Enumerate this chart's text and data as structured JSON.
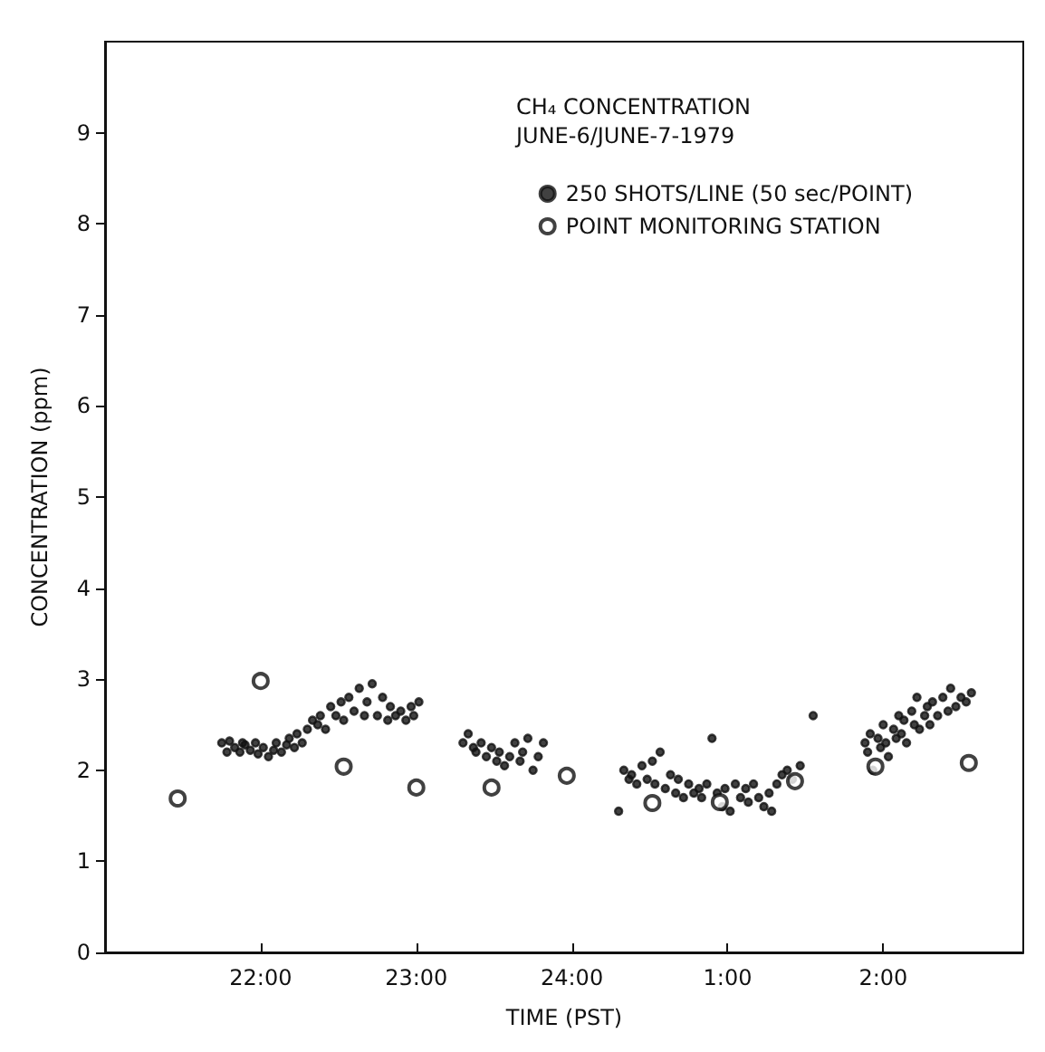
{
  "chart_data": {
    "type": "scatter",
    "title": "CH₄ CONCENTRATION",
    "subtitle": "JUNE-6/JUNE-7-1979",
    "xlabel": "TIME (PST)",
    "ylabel": "CONCENTRATION (ppm)",
    "xlim": [
      "1979-06-06T21:00",
      "1979-06-07T02:54"
    ],
    "xticks": [
      {
        "value": "1979-06-06T22:00",
        "label": "22:00"
      },
      {
        "value": "1979-06-06T23:00",
        "label": "23:00"
      },
      {
        "value": "1979-06-07T00:00",
        "label": "24:00"
      },
      {
        "value": "1979-06-07T01:00",
        "label": "1:00"
      },
      {
        "value": "1979-06-07T02:00",
        "label": "2:00"
      }
    ],
    "ylim": [
      0,
      10
    ],
    "yticks": [
      0,
      1,
      2,
      3,
      4,
      5,
      6,
      7,
      8,
      9
    ],
    "grid": false,
    "legend": "top right",
    "marker": "circle",
    "series": [
      {
        "name": "250 SHOTS/LINE (50 sec/POINT)",
        "color": "#111111",
        "x": [
          "1979-06-06T21:45",
          "1979-06-06T21:47",
          "1979-06-06T21:48",
          "1979-06-06T21:50",
          "1979-06-06T21:52",
          "1979-06-06T21:53",
          "1979-06-06T21:54",
          "1979-06-06T21:56",
          "1979-06-06T21:58",
          "1979-06-06T21:59",
          "1979-06-06T22:01",
          "1979-06-06T22:03",
          "1979-06-06T22:05",
          "1979-06-06T22:06",
          "1979-06-06T22:08",
          "1979-06-06T22:10",
          "1979-06-06T22:11",
          "1979-06-06T22:13",
          "1979-06-06T22:14",
          "1979-06-06T22:16",
          "1979-06-06T22:18",
          "1979-06-06T22:20",
          "1979-06-06T22:22",
          "1979-06-06T22:23",
          "1979-06-06T22:25",
          "1979-06-06T22:27",
          "1979-06-06T22:29",
          "1979-06-06T22:31",
          "1979-06-06T22:32",
          "1979-06-06T22:34",
          "1979-06-06T22:36",
          "1979-06-06T22:38",
          "1979-06-06T22:40",
          "1979-06-06T22:41",
          "1979-06-06T22:43",
          "1979-06-06T22:45",
          "1979-06-06T22:47",
          "1979-06-06T22:49",
          "1979-06-06T22:50",
          "1979-06-06T22:52",
          "1979-06-06T22:54",
          "1979-06-06T22:56",
          "1979-06-06T22:58",
          "1979-06-06T22:59",
          "1979-06-06T23:01",
          "1979-06-06T23:18",
          "1979-06-06T23:20",
          "1979-06-06T23:22",
          "1979-06-06T23:23",
          "1979-06-06T23:25",
          "1979-06-06T23:27",
          "1979-06-06T23:29",
          "1979-06-06T23:31",
          "1979-06-06T23:32",
          "1979-06-06T23:34",
          "1979-06-06T23:36",
          "1979-06-06T23:38",
          "1979-06-06T23:40",
          "1979-06-06T23:41",
          "1979-06-06T23:43",
          "1979-06-06T23:45",
          "1979-06-06T23:47",
          "1979-06-06T23:49",
          "1979-06-07T00:18",
          "1979-06-07T00:20",
          "1979-06-07T00:22",
          "1979-06-07T00:23",
          "1979-06-07T00:25",
          "1979-06-07T00:27",
          "1979-06-07T00:29",
          "1979-06-07T00:31",
          "1979-06-07T00:32",
          "1979-06-07T00:34",
          "1979-06-07T00:36",
          "1979-06-07T00:38",
          "1979-06-07T00:40",
          "1979-06-07T00:41",
          "1979-06-07T00:43",
          "1979-06-07T00:45",
          "1979-06-07T00:47",
          "1979-06-07T00:49",
          "1979-06-07T00:50",
          "1979-06-07T00:52",
          "1979-06-07T00:54",
          "1979-06-07T00:56",
          "1979-06-07T00:58",
          "1979-06-07T00:59",
          "1979-06-07T01:01",
          "1979-06-07T01:03",
          "1979-06-07T01:05",
          "1979-06-07T01:07",
          "1979-06-07T01:08",
          "1979-06-07T01:10",
          "1979-06-07T01:12",
          "1979-06-07T01:14",
          "1979-06-07T01:16",
          "1979-06-07T01:17",
          "1979-06-07T01:19",
          "1979-06-07T01:21",
          "1979-06-07T01:23",
          "1979-06-07T01:25",
          "1979-06-07T01:28",
          "1979-06-07T01:33",
          "1979-06-07T01:53",
          "1979-06-07T01:54",
          "1979-06-07T01:55",
          "1979-06-07T01:56",
          "1979-06-07T01:58",
          "1979-06-07T01:59",
          "1979-06-07T02:00",
          "1979-06-07T02:01",
          "1979-06-07T02:02",
          "1979-06-07T02:04",
          "1979-06-07T02:05",
          "1979-06-07T02:06",
          "1979-06-07T02:07",
          "1979-06-07T02:08",
          "1979-06-07T02:09",
          "1979-06-07T02:11",
          "1979-06-07T02:12",
          "1979-06-07T02:13",
          "1979-06-07T02:14",
          "1979-06-07T02:16",
          "1979-06-07T02:17",
          "1979-06-07T02:18",
          "1979-06-07T02:19",
          "1979-06-07T02:21",
          "1979-06-07T02:23",
          "1979-06-07T02:25",
          "1979-06-07T02:26",
          "1979-06-07T02:28",
          "1979-06-07T02:30",
          "1979-06-07T02:32",
          "1979-06-07T02:34"
        ],
        "values": [
          2.3,
          2.2,
          2.32,
          2.25,
          2.2,
          2.3,
          2.28,
          2.22,
          2.3,
          2.18,
          2.25,
          2.15,
          2.22,
          2.3,
          2.2,
          2.28,
          2.35,
          2.25,
          2.4,
          2.3,
          2.45,
          2.55,
          2.5,
          2.6,
          2.45,
          2.7,
          2.6,
          2.75,
          2.55,
          2.8,
          2.65,
          2.9,
          2.6,
          2.75,
          2.95,
          2.6,
          2.8,
          2.55,
          2.7,
          2.6,
          2.65,
          2.55,
          2.7,
          2.6,
          2.75,
          2.3,
          2.4,
          2.25,
          2.2,
          2.3,
          2.15,
          2.25,
          2.1,
          2.2,
          2.05,
          2.15,
          2.3,
          2.1,
          2.2,
          2.35,
          2.0,
          2.15,
          2.3,
          1.55,
          2.0,
          1.9,
          1.95,
          1.85,
          2.05,
          1.9,
          2.1,
          1.85,
          2.2,
          1.8,
          1.95,
          1.75,
          1.9,
          1.7,
          1.85,
          1.75,
          1.8,
          1.7,
          1.85,
          2.35,
          1.75,
          1.6,
          1.8,
          1.55,
          1.85,
          1.7,
          1.8,
          1.65,
          1.85,
          1.7,
          1.6,
          1.75,
          1.55,
          1.85,
          1.95,
          2.0,
          1.9,
          2.05,
          2.6,
          2.3,
          2.2,
          2.4,
          2.0,
          2.35,
          2.25,
          2.5,
          2.3,
          2.15,
          2.45,
          2.35,
          2.6,
          2.4,
          2.55,
          2.3,
          2.65,
          2.5,
          2.8,
          2.45,
          2.6,
          2.7,
          2.5,
          2.75,
          2.6,
          2.8,
          2.65,
          2.9,
          2.7,
          2.8,
          2.75,
          2.85
        ]
      },
      {
        "name": "POINT MONITORING STATION",
        "color": "#111111",
        "x": [
          "1979-06-06T21:28",
          "1979-06-06T22:00",
          "1979-06-06T22:32",
          "1979-06-06T23:00",
          "1979-06-06T23:29",
          "1979-06-06T23:58",
          "1979-06-07T00:31",
          "1979-06-07T00:57",
          "1979-06-07T01:26",
          "1979-06-07T01:57",
          "1979-06-07T02:33"
        ],
        "values": [
          1.69,
          2.98,
          2.04,
          1.81,
          1.81,
          1.94,
          1.64,
          1.65,
          1.88,
          2.04,
          2.08
        ]
      }
    ]
  }
}
